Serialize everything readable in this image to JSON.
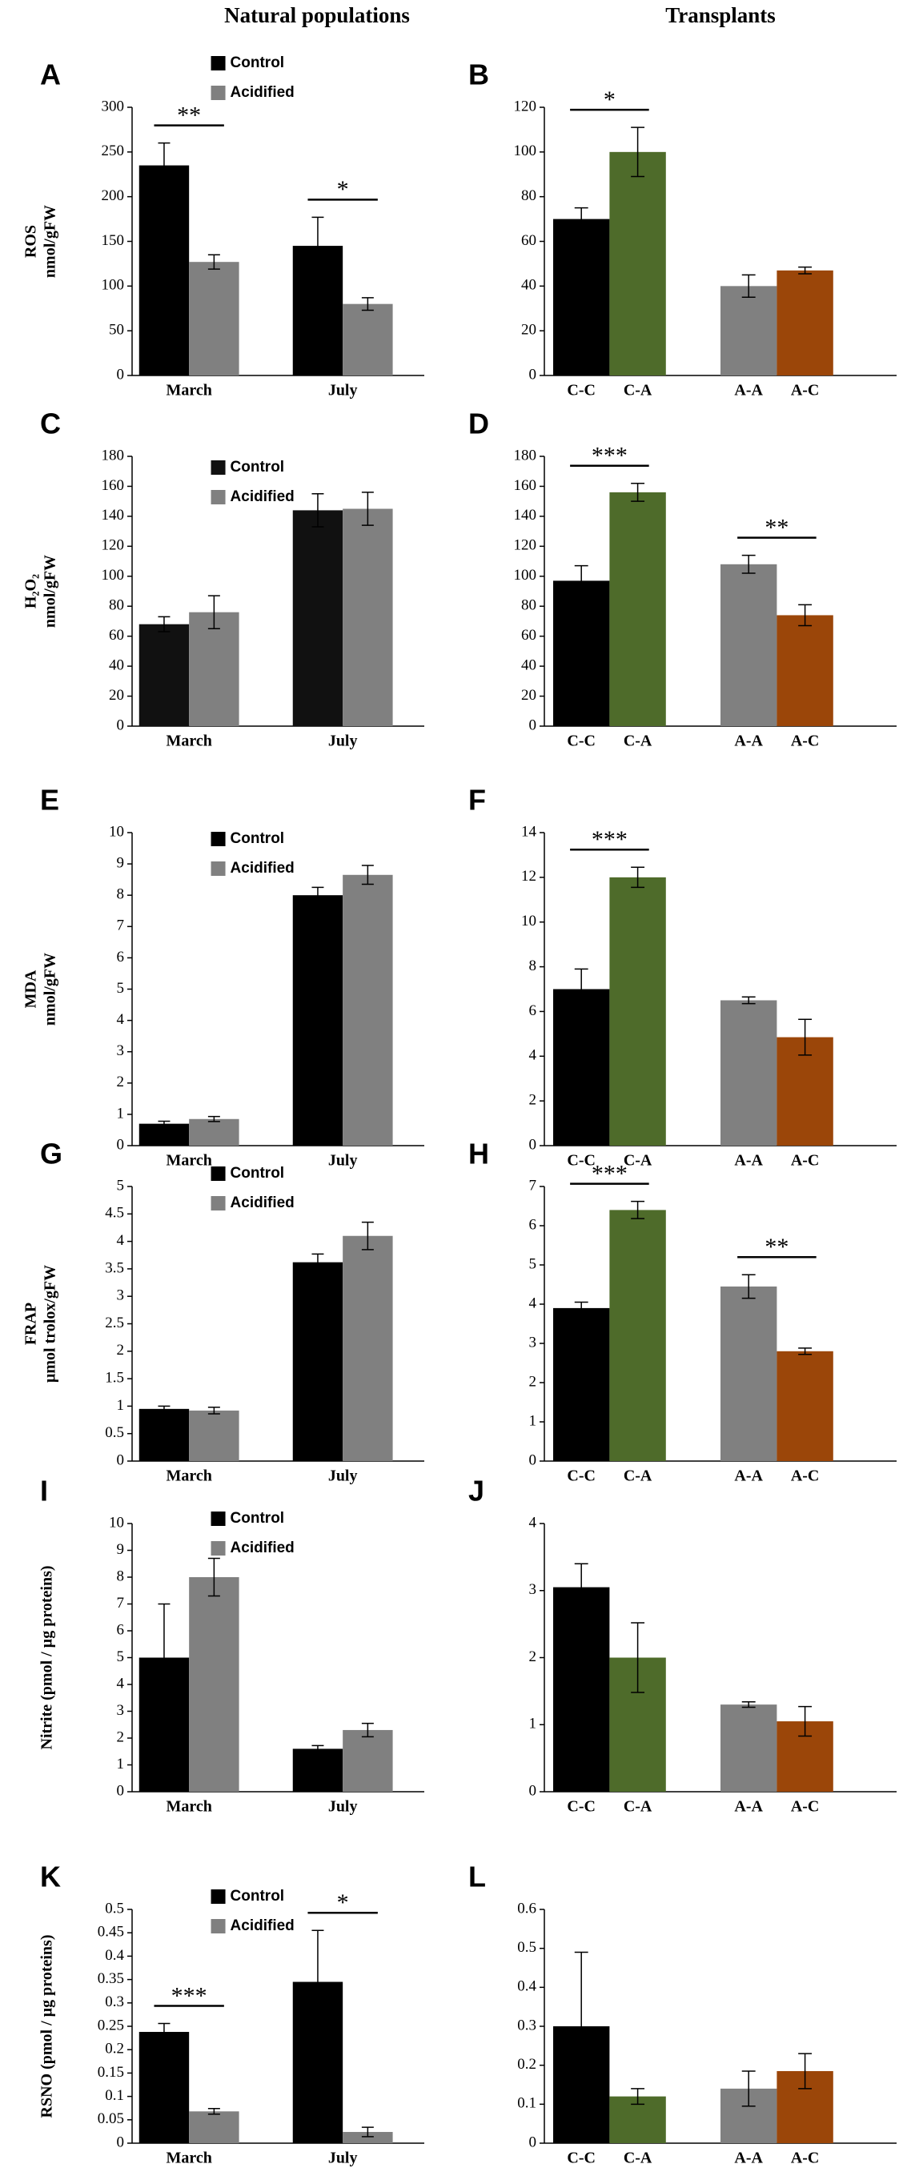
{
  "column_titles": [
    "Natural populations",
    "Transplants"
  ],
  "chart_data": [
    {
      "type": "bar",
      "panel": "A",
      "ylabel": [
        "ROS",
        "nmol/gFW"
      ],
      "categories": [
        "March",
        "July"
      ],
      "series": [
        {
          "name": "Control",
          "color": "#000000",
          "values": [
            235,
            145
          ],
          "errors": [
            25,
            32
          ]
        },
        {
          "name": "Acidified",
          "color": "#808080",
          "values": [
            127,
            80
          ],
          "errors": [
            8,
            7
          ]
        }
      ],
      "ylim": [
        0,
        300
      ],
      "yticks": [
        0,
        50,
        100,
        150,
        200,
        250,
        300
      ],
      "legend": "top",
      "annotations": [
        {
          "text": "**",
          "category": "March"
        },
        {
          "text": "*",
          "category": "July"
        }
      ]
    },
    {
      "type": "bar",
      "panel": "B",
      "categories": [
        "C-C",
        "C-A",
        "A-A",
        "A-C"
      ],
      "values": [
        70,
        100,
        40,
        47
      ],
      "errors": [
        5,
        11,
        5,
        1.5
      ],
      "colors": [
        "#000000",
        "#4e6b2a",
        "#808080",
        "#9b4609"
      ],
      "ylim": [
        0,
        120
      ],
      "yticks": [
        0,
        20,
        40,
        60,
        80,
        100,
        120
      ],
      "annotations": [
        {
          "text": "*",
          "from": "C-C",
          "to": "C-A"
        }
      ]
    },
    {
      "type": "bar",
      "panel": "C",
      "ylabel": [
        "H₂O₂",
        "nmol/gFW"
      ],
      "categories": [
        "March",
        "July"
      ],
      "series": [
        {
          "name": "Control",
          "color": "#111111",
          "values": [
            68,
            144
          ],
          "errors": [
            5,
            11
          ]
        },
        {
          "name": "Acidified",
          "color": "#808080",
          "values": [
            76,
            145
          ],
          "errors": [
            11,
            11
          ]
        }
      ],
      "ylim": [
        0,
        180
      ],
      "yticks": [
        0,
        20,
        40,
        60,
        80,
        100,
        120,
        140,
        160,
        180
      ],
      "legend": "top",
      "annotations": []
    },
    {
      "type": "bar",
      "panel": "D",
      "categories": [
        "C-C",
        "C-A",
        "A-A",
        "A-C"
      ],
      "values": [
        97,
        156,
        108,
        74
      ],
      "errors": [
        10,
        6,
        6,
        7
      ],
      "colors": [
        "#000000",
        "#4e6b2a",
        "#808080",
        "#9b4609"
      ],
      "ylim": [
        0,
        180
      ],
      "yticks": [
        0,
        20,
        40,
        60,
        80,
        100,
        120,
        140,
        160,
        180
      ],
      "annotations": [
        {
          "text": "***",
          "from": "C-C",
          "to": "C-A"
        },
        {
          "text": "**",
          "from": "A-A",
          "to": "A-C"
        }
      ]
    },
    {
      "type": "bar",
      "panel": "E",
      "ylabel": [
        "MDA",
        "nmol/gFW"
      ],
      "categories": [
        "March",
        "July"
      ],
      "series": [
        {
          "name": "Control",
          "color": "#000000",
          "values": [
            0.7,
            8.0
          ],
          "errors": [
            0.08,
            0.25
          ]
        },
        {
          "name": "Acidified",
          "color": "#808080",
          "values": [
            0.85,
            8.65
          ],
          "errors": [
            0.08,
            0.3
          ]
        }
      ],
      "ylim": [
        0,
        10
      ],
      "yticks": [
        0,
        1,
        2,
        3,
        4,
        5,
        6,
        7,
        8,
        9,
        10
      ],
      "legend": "top",
      "annotations": []
    },
    {
      "type": "bar",
      "panel": "F",
      "categories": [
        "C-C",
        "C-A",
        "A-A",
        "A-C"
      ],
      "values": [
        7.0,
        12.0,
        6.5,
        4.85
      ],
      "errors": [
        0.9,
        0.45,
        0.15,
        0.8
      ],
      "colors": [
        "#000000",
        "#4e6b2a",
        "#808080",
        "#9b4609"
      ],
      "ylim": [
        0,
        14
      ],
      "yticks": [
        0,
        2,
        4,
        6,
        8,
        10,
        12,
        14
      ],
      "annotations": [
        {
          "text": "***",
          "from": "C-C",
          "to": "C-A"
        }
      ]
    },
    {
      "type": "bar",
      "panel": "G",
      "ylabel": [
        "FRAP",
        "µmol trolox/gFW"
      ],
      "categories": [
        "March",
        "July"
      ],
      "series": [
        {
          "name": "Control",
          "color": "#000000",
          "values": [
            0.95,
            3.62
          ],
          "errors": [
            0.05,
            0.15
          ]
        },
        {
          "name": "Acidified",
          "color": "#808080",
          "values": [
            0.92,
            4.1
          ],
          "errors": [
            0.06,
            0.25
          ]
        }
      ],
      "ylim": [
        0,
        5
      ],
      "yticks": [
        0,
        0.5,
        1,
        1.5,
        2,
        2.5,
        3,
        3.5,
        4,
        4.5,
        5
      ],
      "legend": "top",
      "annotations": []
    },
    {
      "type": "bar",
      "panel": "H",
      "categories": [
        "C-C",
        "C-A",
        "A-A",
        "A-C"
      ],
      "values": [
        3.9,
        6.4,
        4.45,
        2.8
      ],
      "errors": [
        0.15,
        0.22,
        0.3,
        0.08
      ],
      "colors": [
        "#000000",
        "#4e6b2a",
        "#808080",
        "#9b4609"
      ],
      "ylim": [
        0,
        7
      ],
      "yticks": [
        0,
        1,
        2,
        3,
        4,
        5,
        6,
        7
      ],
      "annotations": [
        {
          "text": "***",
          "from": "C-C",
          "to": "C-A"
        },
        {
          "text": "**",
          "from": "A-A",
          "to": "A-C"
        }
      ]
    },
    {
      "type": "bar",
      "panel": "I",
      "ylabel": [
        "Nitrite (pmol / µg proteins)"
      ],
      "categories": [
        "March",
        "July"
      ],
      "series": [
        {
          "name": "Control",
          "color": "#000000",
          "values": [
            5.0,
            1.6
          ],
          "errors": [
            2.0,
            0.12
          ]
        },
        {
          "name": "Acidified",
          "color": "#808080",
          "values": [
            8.0,
            2.3
          ],
          "errors": [
            0.7,
            0.25
          ]
        }
      ],
      "ylim": [
        0,
        10
      ],
      "yticks": [
        0,
        1,
        2,
        3,
        4,
        5,
        6,
        7,
        8,
        9,
        10
      ],
      "legend": "top",
      "annotations": []
    },
    {
      "type": "bar",
      "panel": "J",
      "categories": [
        "C-C",
        "C-A",
        "A-A",
        "A-C"
      ],
      "values": [
        3.05,
        2.0,
        1.3,
        1.05
      ],
      "errors": [
        0.35,
        0.52,
        0.04,
        0.22
      ],
      "colors": [
        "#000000",
        "#4e6b2a",
        "#808080",
        "#9b4609"
      ],
      "ylim": [
        0,
        4
      ],
      "yticks": [
        0,
        1,
        2,
        3,
        4
      ],
      "annotations": []
    },
    {
      "type": "bar",
      "panel": "K",
      "ylabel": [
        "RSNO (pmol / µg proteins)"
      ],
      "categories": [
        "March",
        "July"
      ],
      "series": [
        {
          "name": "Control",
          "color": "#000000",
          "values": [
            0.238,
            0.345
          ],
          "errors": [
            0.018,
            0.11
          ]
        },
        {
          "name": "Acidified",
          "color": "#808080",
          "values": [
            0.068,
            0.024
          ],
          "errors": [
            0.006,
            0.01
          ]
        }
      ],
      "ylim": [
        0,
        0.5
      ],
      "yticks": [
        0,
        0.05,
        0.1,
        0.15,
        0.2,
        0.25,
        0.3,
        0.35,
        0.4,
        0.45,
        0.5
      ],
      "legend": "top",
      "annotations": [
        {
          "text": "***",
          "category": "March"
        },
        {
          "text": "*",
          "category": "July"
        }
      ]
    },
    {
      "type": "bar",
      "panel": "L",
      "categories": [
        "C-C",
        "C-A",
        "A-A",
        "A-C"
      ],
      "values": [
        0.3,
        0.12,
        0.14,
        0.185
      ],
      "errors": [
        0.19,
        0.02,
        0.045,
        0.045
      ],
      "colors": [
        "#000000",
        "#4e6b2a",
        "#808080",
        "#9b4609"
      ],
      "ylim": [
        0,
        0.6
      ],
      "yticks": [
        0,
        0.1,
        0.2,
        0.3,
        0.4,
        0.5,
        0.6
      ],
      "annotations": []
    }
  ]
}
